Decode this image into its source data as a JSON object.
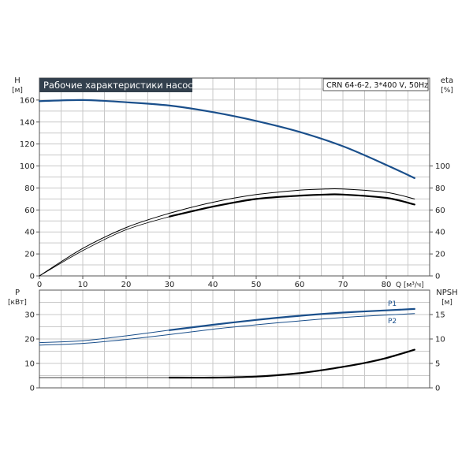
{
  "title": "Рабочие характеристики насоса",
  "model": "CRN 64-6-2, 3*400 V, 50Hz",
  "colors": {
    "head": "#1a4f8b",
    "power": "#1a4f8b",
    "eff": "#000000",
    "npsh": "#000000",
    "grid": "#c9c9c9",
    "title_bg": "#33404d"
  },
  "chart_data": [
    {
      "type": "line",
      "xlabel": "Q [м³/ч]",
      "xlim": [
        0,
        90
      ],
      "xticks": [
        0,
        10,
        20,
        30,
        40,
        50,
        60,
        70,
        80
      ],
      "left_axis": {
        "label": "H",
        "unit": "[м]",
        "lim": [
          0,
          180
        ],
        "ticks": [
          0,
          20,
          40,
          60,
          80,
          100,
          120,
          140,
          160
        ]
      },
      "right_axis": {
        "label": "eta",
        "unit": "[%]",
        "lim": [
          0,
          180
        ],
        "ticks": [
          0,
          20,
          40,
          60,
          80,
          100
        ]
      },
      "grid": true,
      "series": [
        {
          "axis": "left",
          "color": "#1a4f8b",
          "width": 2.2,
          "x": [
            0,
            10,
            20,
            30,
            40,
            50,
            60,
            70,
            80,
            86.5
          ],
          "y": [
            159,
            160,
            158,
            155,
            149,
            141,
            131,
            118,
            101,
            89
          ]
        },
        {
          "axis": "right",
          "color": "#000000",
          "width": 1,
          "x": [
            0,
            10,
            20,
            30,
            40,
            50,
            60,
            66,
            70,
            80,
            86.5
          ],
          "y": [
            0,
            25,
            44,
            57,
            67,
            74,
            78,
            79,
            79,
            76,
            70
          ]
        },
        {
          "axis": "right",
          "color": "#000000",
          "width": 0.8,
          "x": [
            0,
            10,
            20,
            30
          ],
          "y": [
            0,
            23,
            42,
            54
          ]
        },
        {
          "axis": "right",
          "color": "#000000",
          "width": 2.2,
          "x": [
            30,
            40,
            50,
            60,
            66,
            70,
            80,
            86.5
          ],
          "y": [
            54,
            63,
            70,
            73,
            74,
            74,
            71,
            65
          ]
        }
      ]
    },
    {
      "type": "line",
      "xlim": [
        0,
        90
      ],
      "left_axis": {
        "label": "P",
        "unit": "[кВт]",
        "lim": [
          0,
          40
        ],
        "ticks": [
          0,
          10,
          20,
          30
        ]
      },
      "right_axis": {
        "label": "NPSH",
        "unit": "[м]",
        "lim": [
          0,
          20
        ],
        "ticks": [
          0,
          5,
          10,
          15
        ]
      },
      "grid": true,
      "series": [
        {
          "name": "P1",
          "axis": "left",
          "color": "#1a4f8b",
          "width": 1,
          "x": [
            0,
            10,
            20,
            30
          ],
          "y": [
            18.5,
            19.3,
            21.3,
            23.6
          ]
        },
        {
          "axis": "left",
          "color": "#1a4f8b",
          "width": 2.2,
          "x": [
            30,
            40,
            50,
            60,
            70,
            80,
            86.5
          ],
          "y": [
            23.6,
            25.8,
            27.8,
            29.5,
            30.8,
            31.7,
            32.3
          ]
        },
        {
          "name": "P2",
          "axis": "left",
          "color": "#1a4f8b",
          "width": 1,
          "x": [
            0,
            10,
            20,
            30,
            40,
            50,
            60,
            70,
            80,
            86.5
          ],
          "y": [
            17.5,
            18.2,
            19.8,
            21.8,
            24.0,
            25.8,
            27.4,
            28.8,
            29.8,
            30.4
          ]
        },
        {
          "axis": "right",
          "color": "#000000",
          "width": 0.8,
          "x": [
            0,
            30
          ],
          "y": [
            2.1,
            2.1
          ]
        },
        {
          "axis": "right",
          "color": "#000000",
          "width": 2.2,
          "x": [
            30,
            40,
            50,
            55,
            60,
            65,
            70,
            75,
            80,
            86.5
          ],
          "y": [
            2.1,
            2.1,
            2.3,
            2.6,
            3.0,
            3.6,
            4.3,
            5.1,
            6.1,
            7.8
          ]
        }
      ],
      "series_labels": [
        "P1",
        "P2"
      ]
    }
  ]
}
